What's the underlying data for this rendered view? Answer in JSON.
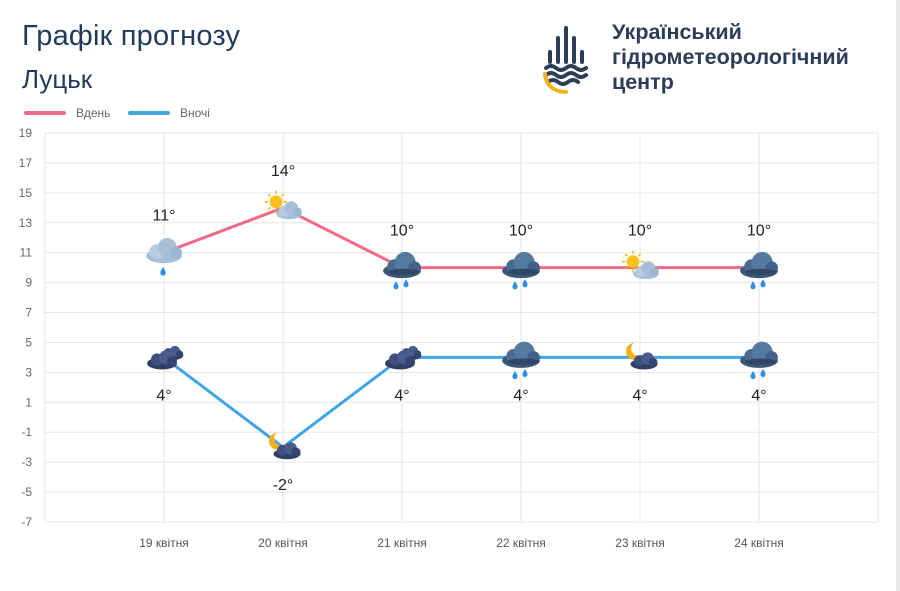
{
  "header": {
    "title": "Графік прогнозу",
    "city": "Луцьк"
  },
  "brand": {
    "lines": [
      "Український",
      "гідрометеорологічний",
      "центр"
    ]
  },
  "colors": {
    "day": "#f06a86",
    "night": "#3fa6e3",
    "text": "#1f3a5a",
    "grid": "#e6e6e6",
    "logo_dark": "#2c3d57",
    "logo_gold": "#f2b21c"
  },
  "chart_data": {
    "type": "line",
    "categories": [
      "19 квітня",
      "20 квітня",
      "21 квітня",
      "22 квітня",
      "23 квітня",
      "24 квітня"
    ],
    "y_ticks": [
      19,
      17,
      15,
      13,
      11,
      9,
      7,
      5,
      3,
      1,
      -1,
      -3,
      -5,
      -7
    ],
    "ylim": [
      -7,
      19
    ],
    "grid": true,
    "legend_position": "top-left",
    "series": [
      {
        "name": "Вдень",
        "color": "#f06a86",
        "values": [
          11,
          14,
          10,
          10,
          10,
          10
        ],
        "labels": [
          "11°",
          "14°",
          "10°",
          "10°",
          "10°",
          "10°"
        ],
        "icons": [
          "cloud-rain-light-icon",
          "sun-cloud-icon",
          "cloud-rain-icon",
          "cloud-rain-icon",
          "sun-cloud-icon",
          "cloud-rain-icon"
        ]
      },
      {
        "name": "Вночі",
        "color": "#3fa6e3",
        "values": [
          4,
          -2,
          4,
          4,
          4,
          4
        ],
        "labels": [
          "4°",
          "-2°",
          "4°",
          "4°",
          "4°",
          "4°"
        ],
        "icons": [
          "dark-clouds-icon",
          "moon-cloud-icon",
          "dark-clouds-icon",
          "cloud-rain-icon",
          "moon-cloud-icon",
          "cloud-rain-icon"
        ]
      }
    ]
  }
}
